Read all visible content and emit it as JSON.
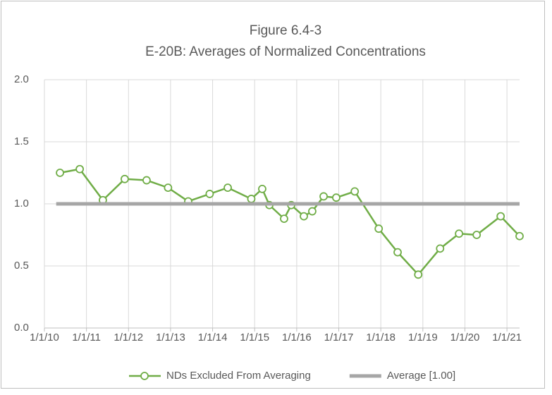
{
  "chart_data": {
    "type": "line",
    "title": "Figure 6.4-3",
    "subtitle": "E-20B: Averages of Normalized Concentrations",
    "xlim": [
      2010,
      2021.3
    ],
    "xticks": [
      {
        "value": 2010,
        "label": "1/1/10"
      },
      {
        "value": 2011,
        "label": "1/1/11"
      },
      {
        "value": 2012,
        "label": "1/1/12"
      },
      {
        "value": 2013,
        "label": "1/1/13"
      },
      {
        "value": 2014,
        "label": "1/1/14"
      },
      {
        "value": 2015,
        "label": "1/1/15"
      },
      {
        "value": 2016,
        "label": "1/1/16"
      },
      {
        "value": 2017,
        "label": "1/1/17"
      },
      {
        "value": 2018,
        "label": "1/1/18"
      },
      {
        "value": 2019,
        "label": "1/1/19"
      },
      {
        "value": 2020,
        "label": "1/1/20"
      },
      {
        "value": 2021,
        "label": "1/1/21"
      }
    ],
    "ylim": [
      0,
      2
    ],
    "yticks": [
      {
        "value": 0,
        "label": "0.0"
      },
      0.5,
      {
        "value": 1,
        "label": "1.0"
      },
      1.5,
      {
        "value": 2,
        "label": "2.0"
      }
    ],
    "grid": true,
    "legend": "bottom",
    "series": [
      {
        "name": "NDs Excluded From Averaging",
        "color": "#70ad47",
        "marker": "circle",
        "x": [
          2010.37,
          2010.84,
          2011.39,
          2011.91,
          2012.43,
          2012.94,
          2013.42,
          2013.93,
          2014.36,
          2014.92,
          2015.18,
          2015.35,
          2015.7,
          2015.87,
          2016.17,
          2016.37,
          2016.64,
          2016.94,
          2017.38,
          2017.95,
          2018.4,
          2018.89,
          2019.41,
          2019.86,
          2020.28,
          2020.85,
          2021.3
        ],
        "values": [
          1.25,
          1.28,
          1.03,
          1.2,
          1.19,
          1.13,
          1.02,
          1.08,
          1.13,
          1.04,
          1.12,
          0.99,
          0.88,
          0.99,
          0.9,
          0.94,
          1.06,
          1.05,
          1.1,
          0.8,
          0.61,
          0.43,
          0.64,
          0.76,
          0.75,
          0.9,
          0.74
        ]
      },
      {
        "name": "Average [1.00]",
        "color": "#a6a6a6",
        "marker": "none",
        "x": [
          2010.28,
          2021.3
        ],
        "values": [
          1,
          1
        ]
      }
    ]
  }
}
